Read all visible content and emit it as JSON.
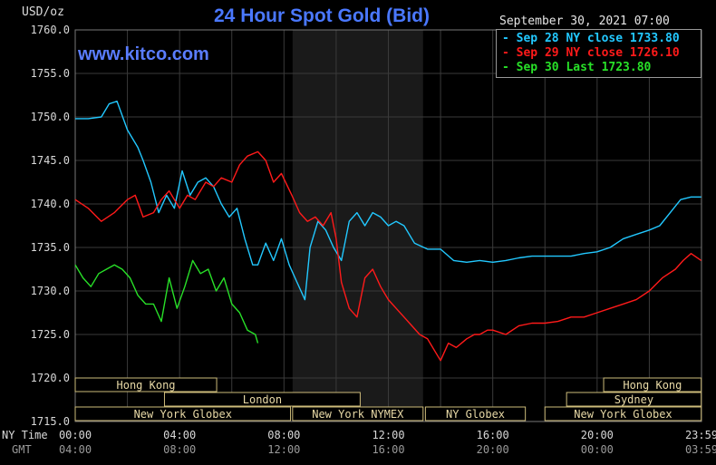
{
  "header": {
    "title": "24 Hour Spot Gold (Bid)",
    "units": "USD/oz",
    "brand": "www.kitco.com",
    "timestamp": "September 30, 2021 07:00"
  },
  "colors": {
    "sep28": "#22c8ff",
    "sep29": "#ff1a1a",
    "sep30": "#28e028",
    "title": "#4a78ff",
    "grid": "#3a3a3a",
    "market_box": "#cdbb7a",
    "closed_band": "#1a1a1a"
  },
  "chart_data": {
    "type": "line",
    "title": "24 Hour Spot Gold (Bid)",
    "ylabel": "USD/oz",
    "ylim": [
      1715,
      1760
    ],
    "y_ticks": [
      "1760.0",
      "1755.0",
      "1750.0",
      "1745.0",
      "1740.0",
      "1735.0",
      "1730.0",
      "1725.0",
      "1720.0",
      "1715.0"
    ],
    "x_range_hours": [
      0,
      24
    ],
    "x_tick_labels_ny": [
      "00:00",
      "04:00",
      "08:00",
      "12:00",
      "16:00",
      "20:00",
      "23:59"
    ],
    "x_tick_labels_gmt": [
      "04:00",
      "08:00",
      "12:00",
      "16:00",
      "20:00",
      "00:00",
      "03:59"
    ],
    "x_row_labels": [
      "NY Time",
      "GMT"
    ],
    "legend_placement": "top-right",
    "legend": [
      {
        "label": "Sep 28 NY close 1733.80",
        "color": "#22c8ff"
      },
      {
        "label": "Sep 29 NY close 1726.10",
        "color": "#ff1a1a"
      },
      {
        "label": "Sep 30 Last 1723.80",
        "color": "#28e028"
      }
    ],
    "closed_band_hours": [
      8.33,
      13.33
    ],
    "markets": [
      {
        "name": "Hong Kong",
        "row": 0,
        "start": 0,
        "end": 5.42
      },
      {
        "name": "Hong Kong",
        "row": 0,
        "start": 20.25,
        "end": 23.99
      },
      {
        "name": "London",
        "row": 1,
        "start": 3.42,
        "end": 10.92
      },
      {
        "name": "Sydney",
        "row": 1,
        "start": 18.83,
        "end": 23.99
      },
      {
        "name": "New York Globex",
        "row": 2,
        "start": 0,
        "end": 8.25
      },
      {
        "name": "New York NYMEX",
        "row": 2,
        "start": 8.33,
        "end": 13.33
      },
      {
        "name": "NY Globex",
        "row": 2,
        "start": 13.42,
        "end": 17.25
      },
      {
        "name": "New York Globex",
        "row": 2,
        "start": 18.0,
        "end": 23.99
      }
    ],
    "series": [
      {
        "name": "Sep 28 NY close 1733.80",
        "color": "#22c8ff",
        "x": [
          0,
          0.5,
          1,
          1.3,
          1.6,
          2,
          2.4,
          2.6,
          2.9,
          3.2,
          3.5,
          3.8,
          4.1,
          4.4,
          4.7,
          5.0,
          5.3,
          5.6,
          5.9,
          6.2,
          6.5,
          6.8,
          7.0,
          7.3,
          7.6,
          7.9,
          8.2,
          8.5,
          8.8,
          9.0,
          9.3,
          9.6,
          9.9,
          10.2,
          10.5,
          10.8,
          11.1,
          11.4,
          11.7,
          12.0,
          12.3,
          12.6,
          13.0,
          13.5,
          14.0,
          14.5,
          15.0,
          15.5,
          16.0,
          16.5,
          17.0,
          17.5,
          18.0,
          18.5,
          19.0,
          19.5,
          20.0,
          20.5,
          21.0,
          21.5,
          22.0,
          22.4,
          22.8,
          23.2,
          23.6,
          23.99
        ],
        "y": [
          1749.8,
          1749.8,
          1750.0,
          1751.5,
          1751.8,
          1748.5,
          1746.5,
          1745.0,
          1742.5,
          1739.0,
          1741.0,
          1739.5,
          1743.8,
          1741.0,
          1742.5,
          1743.0,
          1742.0,
          1740.0,
          1738.5,
          1739.5,
          1736.0,
          1733.0,
          1733.0,
          1735.5,
          1733.5,
          1736.0,
          1733.0,
          1731.0,
          1729.0,
          1735.0,
          1738.0,
          1737.0,
          1735.0,
          1733.5,
          1738.0,
          1739.0,
          1737.5,
          1739.0,
          1738.5,
          1737.5,
          1738.0,
          1737.5,
          1735.5,
          1734.8,
          1734.8,
          1733.5,
          1733.3,
          1733.5,
          1733.3,
          1733.5,
          1733.8,
          1734.0,
          1734.0,
          1734.0,
          1734.0,
          1734.3,
          1734.5,
          1735.0,
          1736.0,
          1736.5,
          1737.0,
          1737.5,
          1739.0,
          1740.5,
          1740.8,
          1740.8
        ]
      },
      {
        "name": "Sep 29 NY close 1726.10",
        "color": "#ff1a1a",
        "x": [
          0,
          0.5,
          1,
          1.5,
          2,
          2.3,
          2.6,
          3.0,
          3.3,
          3.6,
          4.0,
          4.3,
          4.6,
          5.0,
          5.3,
          5.6,
          6.0,
          6.3,
          6.6,
          7.0,
          7.3,
          7.6,
          7.9,
          8.3,
          8.6,
          8.9,
          9.2,
          9.5,
          9.8,
          10.0,
          10.2,
          10.5,
          10.8,
          11.1,
          11.4,
          11.7,
          12.0,
          12.3,
          12.6,
          12.9,
          13.2,
          13.5,
          13.8,
          14.0,
          14.3,
          14.6,
          15.0,
          15.3,
          15.5,
          15.8,
          16.0,
          16.5,
          17.0,
          17.5,
          18.0,
          18.5,
          19.0,
          19.5,
          20.0,
          20.5,
          21.0,
          21.5,
          22.0,
          22.5,
          23.0,
          23.3,
          23.6,
          23.99
        ],
        "y": [
          1740.5,
          1739.5,
          1738.0,
          1739.0,
          1740.5,
          1741.0,
          1738.5,
          1739.0,
          1740.5,
          1741.5,
          1739.5,
          1741.0,
          1740.5,
          1742.5,
          1742.0,
          1743.0,
          1742.5,
          1744.5,
          1745.5,
          1746.0,
          1745.0,
          1742.5,
          1743.5,
          1741.0,
          1739.0,
          1738.0,
          1738.5,
          1737.5,
          1739.0,
          1736.0,
          1731.0,
          1728.0,
          1727.0,
          1731.5,
          1732.5,
          1730.5,
          1729.0,
          1728.0,
          1727.0,
          1726.0,
          1725.0,
          1724.5,
          1723.0,
          1722.0,
          1724.0,
          1723.5,
          1724.5,
          1725.0,
          1725.0,
          1725.5,
          1725.5,
          1725.0,
          1726.0,
          1726.3,
          1726.3,
          1726.5,
          1727.0,
          1727.0,
          1727.5,
          1728.0,
          1728.5,
          1729.0,
          1730.0,
          1731.5,
          1732.5,
          1733.5,
          1734.3,
          1733.5
        ]
      },
      {
        "name": "Sep 30 Last 1723.80",
        "color": "#28e028",
        "x": [
          0,
          0.3,
          0.6,
          0.9,
          1.2,
          1.5,
          1.8,
          2.1,
          2.4,
          2.7,
          3.0,
          3.3,
          3.6,
          3.9,
          4.2,
          4.5,
          4.8,
          5.1,
          5.4,
          5.7,
          6.0,
          6.3,
          6.6,
          6.9,
          7.0
        ],
        "y": [
          1733.0,
          1731.5,
          1730.5,
          1732.0,
          1732.5,
          1733.0,
          1732.5,
          1731.5,
          1729.5,
          1728.5,
          1728.5,
          1726.5,
          1731.5,
          1728.0,
          1730.5,
          1733.5,
          1732.0,
          1732.5,
          1730.0,
          1731.5,
          1728.5,
          1727.5,
          1725.5,
          1725.0,
          1724.0
        ]
      }
    ]
  }
}
